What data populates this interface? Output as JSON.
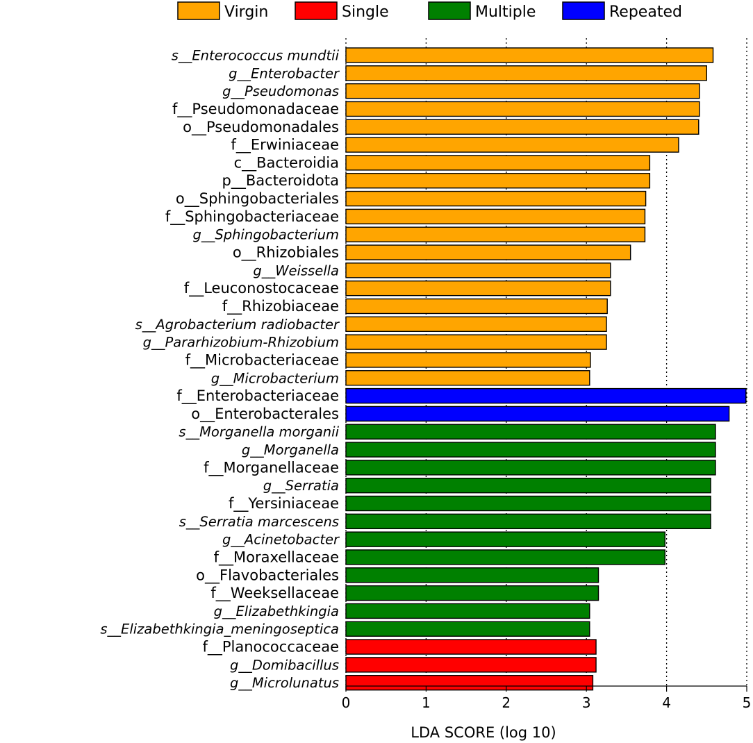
{
  "chart_data": {
    "type": "bar",
    "orientation": "horizontal",
    "title": "",
    "xlabel": "LDA SCORE (log 10)",
    "ylabel": "",
    "xlim": [
      0,
      5
    ],
    "xticks": [
      0,
      1,
      2,
      3,
      4,
      5
    ],
    "grid": "vertical dotted lines at x ticks",
    "legend_position": "top",
    "legend": [
      {
        "name": "Virgin",
        "color": "#FFA500"
      },
      {
        "name": "Single",
        "color": "#FF0000"
      },
      {
        "name": "Multiple",
        "color": "#008000"
      },
      {
        "name": "Repeated",
        "color": "#0000FF"
      }
    ],
    "bars": [
      {
        "label": "s__Enterococcus mundtii",
        "value": 4.58,
        "group": "Virgin",
        "italic": true
      },
      {
        "label": "g__Enterobacter",
        "value": 4.5,
        "group": "Virgin",
        "italic": true
      },
      {
        "label": "g__Pseudomonas",
        "value": 4.41,
        "group": "Virgin",
        "italic": true
      },
      {
        "label": "f__Pseudomonadaceae",
        "value": 4.41,
        "group": "Virgin",
        "italic": false
      },
      {
        "label": "o__Pseudomonadales",
        "value": 4.4,
        "group": "Virgin",
        "italic": false
      },
      {
        "label": "f__Erwiniaceae",
        "value": 4.15,
        "group": "Virgin",
        "italic": false
      },
      {
        "label": "c__Bacteroidia",
        "value": 3.79,
        "group": "Virgin",
        "italic": false
      },
      {
        "label": "p__Bacteroidota",
        "value": 3.79,
        "group": "Virgin",
        "italic": false
      },
      {
        "label": "o__Sphingobacteriales",
        "value": 3.74,
        "group": "Virgin",
        "italic": false
      },
      {
        "label": "f__Sphingobacteriaceae",
        "value": 3.73,
        "group": "Virgin",
        "italic": false
      },
      {
        "label": "g__Sphingobacterium",
        "value": 3.73,
        "group": "Virgin",
        "italic": true
      },
      {
        "label": "o__Rhizobiales",
        "value": 3.55,
        "group": "Virgin",
        "italic": false
      },
      {
        "label": "g__Weissella",
        "value": 3.3,
        "group": "Virgin",
        "italic": true
      },
      {
        "label": "f__Leuconostocaceae",
        "value": 3.3,
        "group": "Virgin",
        "italic": false
      },
      {
        "label": "f__Rhizobiaceae",
        "value": 3.26,
        "group": "Virgin",
        "italic": false
      },
      {
        "label": "s__Agrobacterium radiobacter",
        "value": 3.25,
        "group": "Virgin",
        "italic": true
      },
      {
        "label": "g__Pararhizobium-Rhizobium",
        "value": 3.25,
        "group": "Virgin",
        "italic": true
      },
      {
        "label": "f__Microbacteriaceae",
        "value": 3.05,
        "group": "Virgin",
        "italic": false
      },
      {
        "label": "g__Microbacterium",
        "value": 3.04,
        "group": "Virgin",
        "italic": true
      },
      {
        "label": "f__Enterobacteriaceae",
        "value": 4.99,
        "group": "Repeated",
        "italic": false
      },
      {
        "label": "o__Enterobacterales",
        "value": 4.78,
        "group": "Repeated",
        "italic": false
      },
      {
        "label": "s__Morganella morganii",
        "value": 4.61,
        "group": "Multiple",
        "italic": true
      },
      {
        "label": "g__Morganella",
        "value": 4.61,
        "group": "Multiple",
        "italic": true
      },
      {
        "label": "f__Morganellaceae",
        "value": 4.61,
        "group": "Multiple",
        "italic": false
      },
      {
        "label": "g__Serratia",
        "value": 4.55,
        "group": "Multiple",
        "italic": true
      },
      {
        "label": "f__Yersiniaceae",
        "value": 4.55,
        "group": "Multiple",
        "italic": false
      },
      {
        "label": "s__Serratia marcescens",
        "value": 4.55,
        "group": "Multiple",
        "italic": true
      },
      {
        "label": "g__Acinetobacter",
        "value": 3.98,
        "group": "Multiple",
        "italic": true
      },
      {
        "label": "f__Moraxellaceae",
        "value": 3.98,
        "group": "Multiple",
        "italic": false
      },
      {
        "label": "o__Flavobacteriales",
        "value": 3.15,
        "group": "Multiple",
        "italic": false
      },
      {
        "label": "f__Weeksellaceae",
        "value": 3.15,
        "group": "Multiple",
        "italic": false
      },
      {
        "label": "g__Elizabethkingia",
        "value": 3.04,
        "group": "Multiple",
        "italic": true
      },
      {
        "label": "s__Elizabethkingia_meningoseptica",
        "value": 3.04,
        "group": "Multiple",
        "italic": true
      },
      {
        "label": "f__Planococcaceae",
        "value": 3.12,
        "group": "Single",
        "italic": false
      },
      {
        "label": "g__Domibacillus",
        "value": 3.12,
        "group": "Single",
        "italic": true
      },
      {
        "label": "g__Microlunatus",
        "value": 3.08,
        "group": "Single",
        "italic": true
      }
    ]
  }
}
